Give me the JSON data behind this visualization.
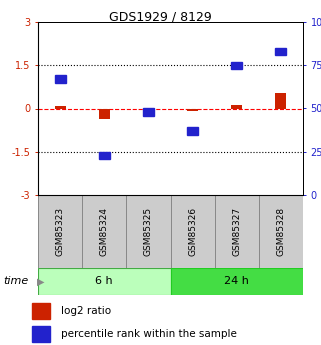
{
  "title": "GDS1929 / 8129",
  "samples": [
    "GSM85323",
    "GSM85324",
    "GSM85325",
    "GSM85326",
    "GSM85327",
    "GSM85328"
  ],
  "log2_ratio": [
    0.08,
    -0.35,
    -0.05,
    -0.08,
    0.12,
    0.55
  ],
  "percentile_rank": [
    67,
    23,
    48,
    37,
    75,
    83
  ],
  "ylim_left": [
    -3,
    3
  ],
  "ylim_right": [
    0,
    100
  ],
  "yticks_left": [
    -3,
    -1.5,
    0,
    1.5,
    3
  ],
  "yticks_right": [
    0,
    25,
    50,
    75,
    100
  ],
  "hlines": [
    1.5,
    0,
    -1.5
  ],
  "hline_styles": [
    "dotted",
    "dashed",
    "dotted"
  ],
  "hline_colors": [
    "black",
    "red",
    "black"
  ],
  "group_label_6h": "6 h",
  "group_label_24h": "24 h",
  "color_log2": "#cc2200",
  "color_pct": "#2222cc",
  "color_6h": "#bbffbb",
  "color_24h": "#44dd44",
  "color_sample_bg": "#cccccc",
  "color_sample_edge": "#888888",
  "bar_width": 0.25,
  "sq_size": 0.25,
  "title_fontsize": 9,
  "tick_fontsize": 7,
  "label_fontsize": 6.5,
  "group_fontsize": 8,
  "legend_fontsize": 7.5,
  "time_fontsize": 8
}
